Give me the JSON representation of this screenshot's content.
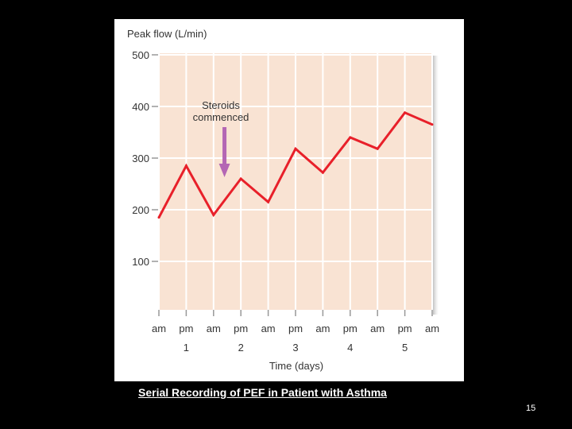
{
  "chart_data": {
    "type": "line",
    "ylabel": "Peak flow (L/min)",
    "xlabel": "Time (days)",
    "ylim": [
      0,
      500
    ],
    "y_ticks": [
      100,
      200,
      300,
      400,
      500
    ],
    "x_tick_labels": [
      "am",
      "pm",
      "am",
      "pm",
      "am",
      "pm",
      "am",
      "pm",
      "am",
      "pm",
      "am"
    ],
    "day_labels": [
      "1",
      "2",
      "3",
      "4",
      "5"
    ],
    "series": [
      {
        "values": [
          185,
          285,
          190,
          260,
          215,
          318,
          272,
          340,
          318,
          388,
          365
        ]
      }
    ],
    "annotation": {
      "text_line1": "Steroids",
      "text_line2": "commenced",
      "at_index": 2.4
    },
    "colors": {
      "plot_background": "#f9e3d3",
      "line": "#e8202a",
      "arrow": "#b466b4",
      "grid": "#ffffff",
      "axis_text": "#333333"
    },
    "grid": true
  },
  "caption": "Serial Recording of PEF in Patient with Asthma",
  "page_number": "15"
}
